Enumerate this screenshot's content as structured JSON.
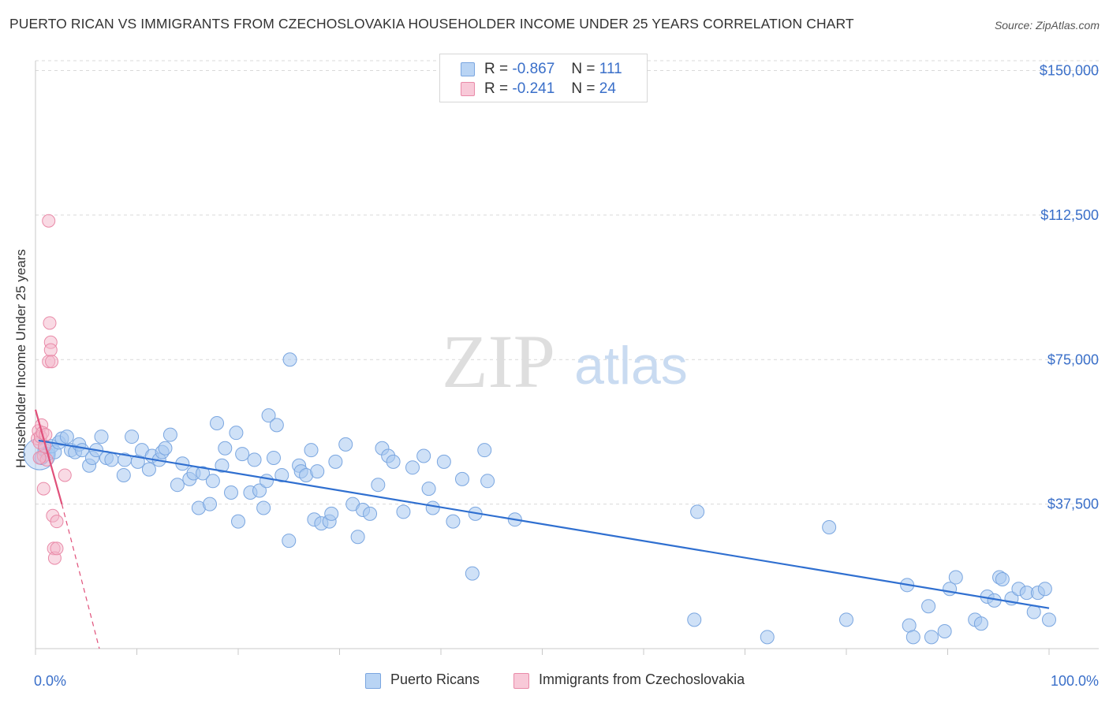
{
  "title": "PUERTO RICAN VS IMMIGRANTS FROM CZECHOSLOVAKIA HOUSEHOLDER INCOME UNDER 25 YEARS CORRELATION CHART",
  "source": "Source: ZipAtlas.com",
  "watermark": {
    "zip": "ZIP",
    "atlas": "atlas"
  },
  "legend_top": [
    {
      "r_label": "R =",
      "r_value": "-0.867",
      "n_label": "N =",
      "n_value": "111"
    },
    {
      "r_label": "R =",
      "r_value": "-0.241",
      "n_label": "N =",
      "n_value": "24"
    }
  ],
  "legend_bottom": [
    "Puerto Ricans",
    "Immigrants from Czechoslovakia"
  ],
  "colors": {
    "blue_fill": "#a8c8f0",
    "blue_stroke": "#7aa6e0",
    "blue_line": "#2f6fd0",
    "pink_fill": "#f4b6ca",
    "pink_stroke": "#e98aa8",
    "pink_line": "#e0507a",
    "grid": "#d9d9d9",
    "axis_label": "#3a6fc9"
  },
  "chart_data": {
    "type": "scatter",
    "title": "PUERTO RICAN VS IMMIGRANTS FROM CZECHOSLOVAKIA HOUSEHOLDER INCOME UNDER 25 YEARS CORRELATION CHART",
    "xlabel": "",
    "ylabel": "Householder Income Under 25 years",
    "xlim": [
      0,
      100
    ],
    "ylim": [
      0,
      154000
    ],
    "y_ticks": [
      37500,
      75000,
      112500,
      150000
    ],
    "y_tick_labels": [
      "$37,500",
      "$75,000",
      "$112,500",
      "$150,000"
    ],
    "x_tick_labels": [
      "0.0%",
      "100.0%"
    ],
    "grid": true,
    "legend_position": "top-center",
    "series": [
      {
        "name": "Puerto Ricans",
        "r": -0.867,
        "n": 111,
        "trend": {
          "x0": 0.3,
          "y0": 54000,
          "x1": 100,
          "y1": 10500
        },
        "points": [
          [
            0.6,
            49500
          ],
          [
            0.9,
            51500
          ],
          [
            1.2,
            50500
          ],
          [
            1.6,
            52500
          ],
          [
            1.9,
            51000
          ],
          [
            2.3,
            53500
          ],
          [
            2.6,
            54500
          ],
          [
            3.1,
            55000
          ],
          [
            3.5,
            51500
          ],
          [
            3.9,
            51000
          ],
          [
            4.3,
            53000
          ],
          [
            4.6,
            51500
          ],
          [
            5.3,
            47500
          ],
          [
            5.6,
            49500
          ],
          [
            6.0,
            51500
          ],
          [
            6.5,
            55000
          ],
          [
            7.0,
            49500
          ],
          [
            7.5,
            49000
          ],
          [
            8.7,
            45000
          ],
          [
            8.8,
            49000
          ],
          [
            9.5,
            55000
          ],
          [
            10.1,
            48500
          ],
          [
            10.5,
            51500
          ],
          [
            11.2,
            46500
          ],
          [
            11.5,
            50000
          ],
          [
            12.2,
            49000
          ],
          [
            12.5,
            51000
          ],
          [
            12.8,
            52000
          ],
          [
            13.3,
            55500
          ],
          [
            14.0,
            42500
          ],
          [
            14.5,
            48000
          ],
          [
            15.2,
            44000
          ],
          [
            15.6,
            45500
          ],
          [
            16.1,
            36500
          ],
          [
            16.5,
            45500
          ],
          [
            17.2,
            37500
          ],
          [
            17.5,
            43500
          ],
          [
            17.9,
            58500
          ],
          [
            18.4,
            47500
          ],
          [
            18.7,
            52000
          ],
          [
            19.3,
            40500
          ],
          [
            19.8,
            56000
          ],
          [
            20.0,
            33000
          ],
          [
            20.4,
            50500
          ],
          [
            21.2,
            40500
          ],
          [
            21.6,
            49000
          ],
          [
            22.1,
            41000
          ],
          [
            22.5,
            36500
          ],
          [
            22.8,
            43500
          ],
          [
            23.0,
            60500
          ],
          [
            23.5,
            49500
          ],
          [
            23.8,
            58000
          ],
          [
            24.3,
            45000
          ],
          [
            25.0,
            28000
          ],
          [
            25.1,
            75000
          ],
          [
            26.0,
            47500
          ],
          [
            26.2,
            46000
          ],
          [
            26.7,
            45000
          ],
          [
            27.2,
            51500
          ],
          [
            27.5,
            33500
          ],
          [
            27.8,
            46000
          ],
          [
            28.2,
            32500
          ],
          [
            29.0,
            33000
          ],
          [
            29.2,
            35000
          ],
          [
            29.6,
            48500
          ],
          [
            30.6,
            53000
          ],
          [
            31.3,
            37500
          ],
          [
            31.8,
            29000
          ],
          [
            32.3,
            36000
          ],
          [
            33.0,
            35000
          ],
          [
            33.8,
            42500
          ],
          [
            34.2,
            52000
          ],
          [
            34.8,
            50000
          ],
          [
            35.3,
            48500
          ],
          [
            36.3,
            35500
          ],
          [
            37.2,
            47000
          ],
          [
            38.3,
            50000
          ],
          [
            38.8,
            41500
          ],
          [
            39.2,
            36500
          ],
          [
            40.3,
            48500
          ],
          [
            41.2,
            33000
          ],
          [
            42.1,
            44000
          ],
          [
            43.1,
            19500
          ],
          [
            43.4,
            35000
          ],
          [
            44.3,
            51500
          ],
          [
            44.6,
            43500
          ],
          [
            47.3,
            33500
          ],
          [
            65.0,
            7500
          ],
          [
            65.3,
            35500
          ],
          [
            72.2,
            3000
          ],
          [
            78.3,
            31500
          ],
          [
            80.0,
            7500
          ],
          [
            86.0,
            16500
          ],
          [
            86.2,
            6000
          ],
          [
            86.6,
            3000
          ],
          [
            88.1,
            11000
          ],
          [
            88.4,
            3000
          ],
          [
            89.7,
            4500
          ],
          [
            90.2,
            15500
          ],
          [
            90.8,
            18500
          ],
          [
            92.7,
            7500
          ],
          [
            93.3,
            6500
          ],
          [
            93.9,
            13500
          ],
          [
            94.6,
            12500
          ],
          [
            95.1,
            18500
          ],
          [
            95.4,
            18000
          ],
          [
            96.3,
            13000
          ],
          [
            97.0,
            15500
          ],
          [
            97.8,
            14500
          ],
          [
            98.5,
            9500
          ],
          [
            98.9,
            14500
          ],
          [
            99.6,
            15500
          ],
          [
            100.0,
            7500
          ]
        ]
      },
      {
        "name": "Immigrants from Czechoslovakia",
        "r": -0.241,
        "n": 24,
        "trend": {
          "x0": 0.0,
          "y0": 62000,
          "x1": 2.6,
          "y1": 37500,
          "dash_x1": 6.3,
          "dash_y1": 0
        },
        "points": [
          [
            0.2,
            54500
          ],
          [
            0.3,
            56500
          ],
          [
            0.4,
            53500
          ],
          [
            0.5,
            55000
          ],
          [
            0.6,
            58000
          ],
          [
            0.7,
            56000
          ],
          [
            0.8,
            41500
          ],
          [
            0.8,
            50000
          ],
          [
            0.9,
            52500
          ],
          [
            1.0,
            55500
          ],
          [
            1.1,
            49000
          ],
          [
            1.3,
            111000
          ],
          [
            1.3,
            74500
          ],
          [
            1.4,
            84500
          ],
          [
            1.5,
            79500
          ],
          [
            1.5,
            77500
          ],
          [
            1.6,
            74500
          ],
          [
            1.7,
            34500
          ],
          [
            1.8,
            26000
          ],
          [
            1.9,
            23500
          ],
          [
            2.1,
            26000
          ],
          [
            2.1,
            33000
          ],
          [
            2.9,
            45000
          ],
          [
            0.4,
            49500
          ]
        ]
      }
    ]
  }
}
